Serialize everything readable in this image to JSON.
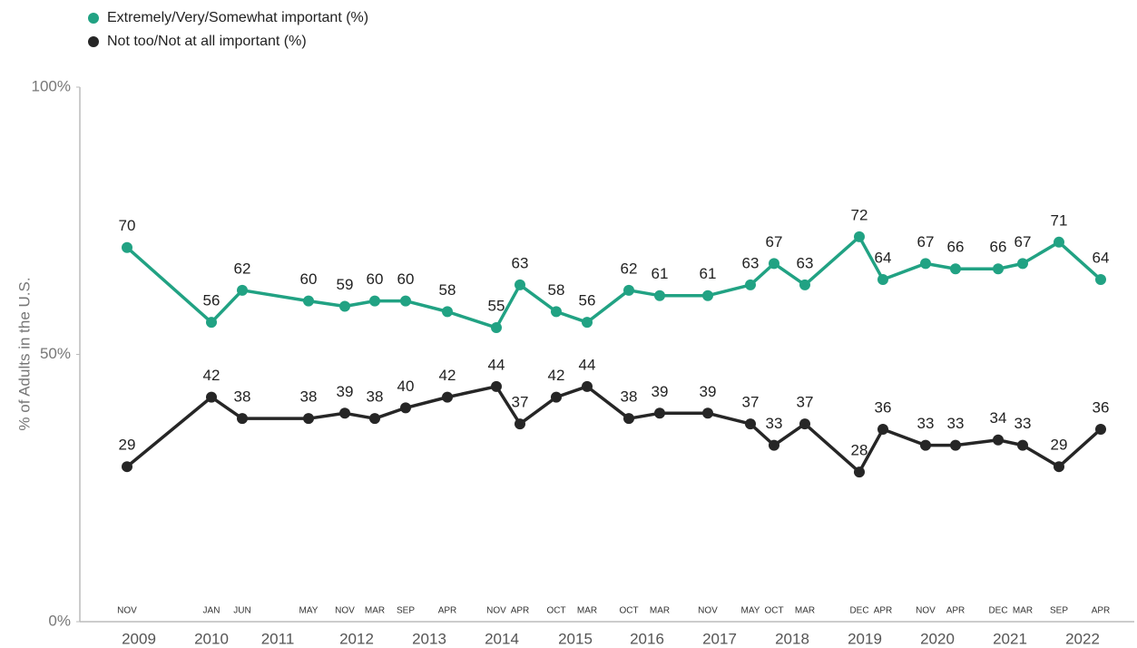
{
  "chart_data": {
    "type": "line",
    "y_label": "% of Adults in the U.S.",
    "categories": [
      "NOV",
      "JAN",
      "JUN",
      "MAY",
      "NOV",
      "MAR",
      "SEP",
      "APR",
      "NOV",
      "APR",
      "OCT",
      "MAR",
      "OCT",
      "MAR",
      "NOV",
      "MAY",
      "OCT",
      "MAR",
      "DEC",
      "APR",
      "NOV",
      "APR",
      "DEC",
      "MAR",
      "SEP",
      "APR"
    ],
    "years": [
      "2009",
      "2010",
      "2011",
      "2012",
      "2013",
      "2014",
      "2015",
      "2016",
      "2017",
      "2018",
      "2019",
      "2020",
      "2021",
      "2022"
    ],
    "series": [
      {
        "name": "Extremely/Very/Somewhat important (%)",
        "color": "#21a283",
        "values": [
          70,
          56,
          62,
          60,
          59,
          60,
          60,
          58,
          55,
          63,
          58,
          56,
          62,
          61,
          61,
          63,
          67,
          63,
          72,
          64,
          67,
          66,
          66,
          67,
          71,
          64
        ]
      },
      {
        "name": "Not too/Not at all important (%)",
        "color": "#262626",
        "values": [
          29,
          42,
          38,
          38,
          39,
          38,
          40,
          42,
          44,
          37,
          42,
          44,
          38,
          39,
          39,
          37,
          33,
          37,
          28,
          36,
          33,
          33,
          34,
          33,
          29,
          36
        ]
      }
    ],
    "ylim": [
      0,
      100
    ],
    "yticks": [
      {
        "value": 0,
        "label": "0%"
      },
      {
        "value": 50,
        "label": "50%"
      },
      {
        "value": 100,
        "label": "100%"
      }
    ],
    "grid": false
  }
}
